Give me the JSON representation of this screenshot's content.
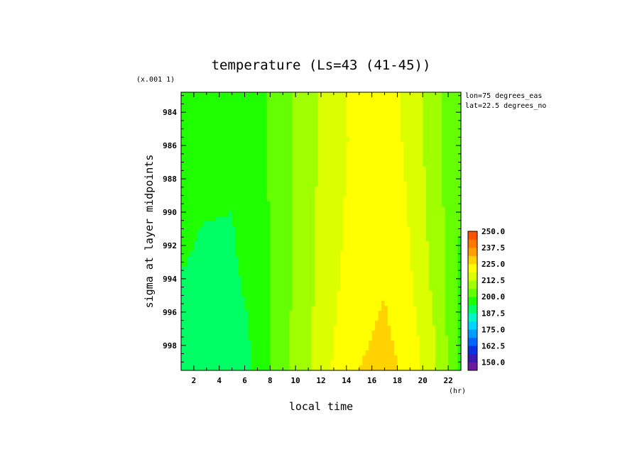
{
  "chart_data": {
    "type": "heatmap",
    "title": "temperature (Ls=43 (41-45))",
    "xlabel": "local time",
    "x_unit": "(hr)",
    "ylabel": "sigma at layer midpoints",
    "y_scale_note": "(x.001 1)",
    "annotations": [
      "lon=75 degrees_eas",
      "lat=22.5 degrees_no"
    ],
    "xlim": [
      1,
      23
    ],
    "ylim": [
      999.5,
      982.8
    ],
    "x_ticks": [
      2,
      4,
      6,
      8,
      10,
      12,
      14,
      16,
      18,
      20,
      22
    ],
    "y_ticks": [
      984,
      986,
      988,
      990,
      992,
      994,
      996,
      998
    ],
    "x": [
      1,
      3,
      5,
      7,
      9,
      11,
      13,
      15,
      17,
      19,
      21,
      23
    ],
    "y": [
      983,
      985,
      987,
      989,
      991,
      993,
      995,
      997,
      999.5
    ],
    "z": [
      [
        196.5,
        196.0,
        196.0,
        197.5,
        204.0,
        210.5,
        216.5,
        220.5,
        222.0,
        217.0,
        208.5,
        201.0
      ],
      [
        196.0,
        195.5,
        195.5,
        197.0,
        204.0,
        210.5,
        216.5,
        220.5,
        222.0,
        217.0,
        208.5,
        201.0
      ],
      [
        195.5,
        195.0,
        194.5,
        197.0,
        204.0,
        210.5,
        216.5,
        220.5,
        222.5,
        217.5,
        208.5,
        200.5
      ],
      [
        195.0,
        194.5,
        194.0,
        197.0,
        204.0,
        210.5,
        217.0,
        221.0,
        223.0,
        218.0,
        209.0,
        200.0
      ],
      [
        194.5,
        193.5,
        193.5,
        196.5,
        204.0,
        211.0,
        217.0,
        221.5,
        223.5,
        218.5,
        209.5,
        199.5
      ],
      [
        194.0,
        193.0,
        193.0,
        196.5,
        204.0,
        211.0,
        217.5,
        222.0,
        224.0,
        219.0,
        210.0,
        199.0
      ],
      [
        193.0,
        192.0,
        192.0,
        196.0,
        204.0,
        211.0,
        218.0,
        222.5,
        225.0,
        220.0,
        211.0,
        198.5
      ],
      [
        192.0,
        191.0,
        190.5,
        195.5,
        204.0,
        211.5,
        218.5,
        223.5,
        226.0,
        221.5,
        212.0,
        198.5
      ],
      [
        191.0,
        190.0,
        189.0,
        195.0,
        204.0,
        212.0,
        219.5,
        225.0,
        227.5,
        223.0,
        213.0,
        199.0
      ]
    ],
    "colorbar": {
      "min": 143.75,
      "max": 250.0,
      "step": 6.25,
      "labels": [
        "250.0",
        "237.5",
        "225.0",
        "212.5",
        "200.0",
        "187.5",
        "175.0",
        "162.5",
        "150.0"
      ],
      "colors": [
        "#6a1b9a",
        "#3a1ab0",
        "#0a30e0",
        "#0064ff",
        "#009cff",
        "#00d4ff",
        "#00f5c8",
        "#00ff64",
        "#20ff00",
        "#64ff00",
        "#a0ff00",
        "#dcff00",
        "#ffff00",
        "#ffd200",
        "#ffa000",
        "#ff7800",
        "#ff5000"
      ]
    },
    "legend_position": "right",
    "grid": false
  }
}
